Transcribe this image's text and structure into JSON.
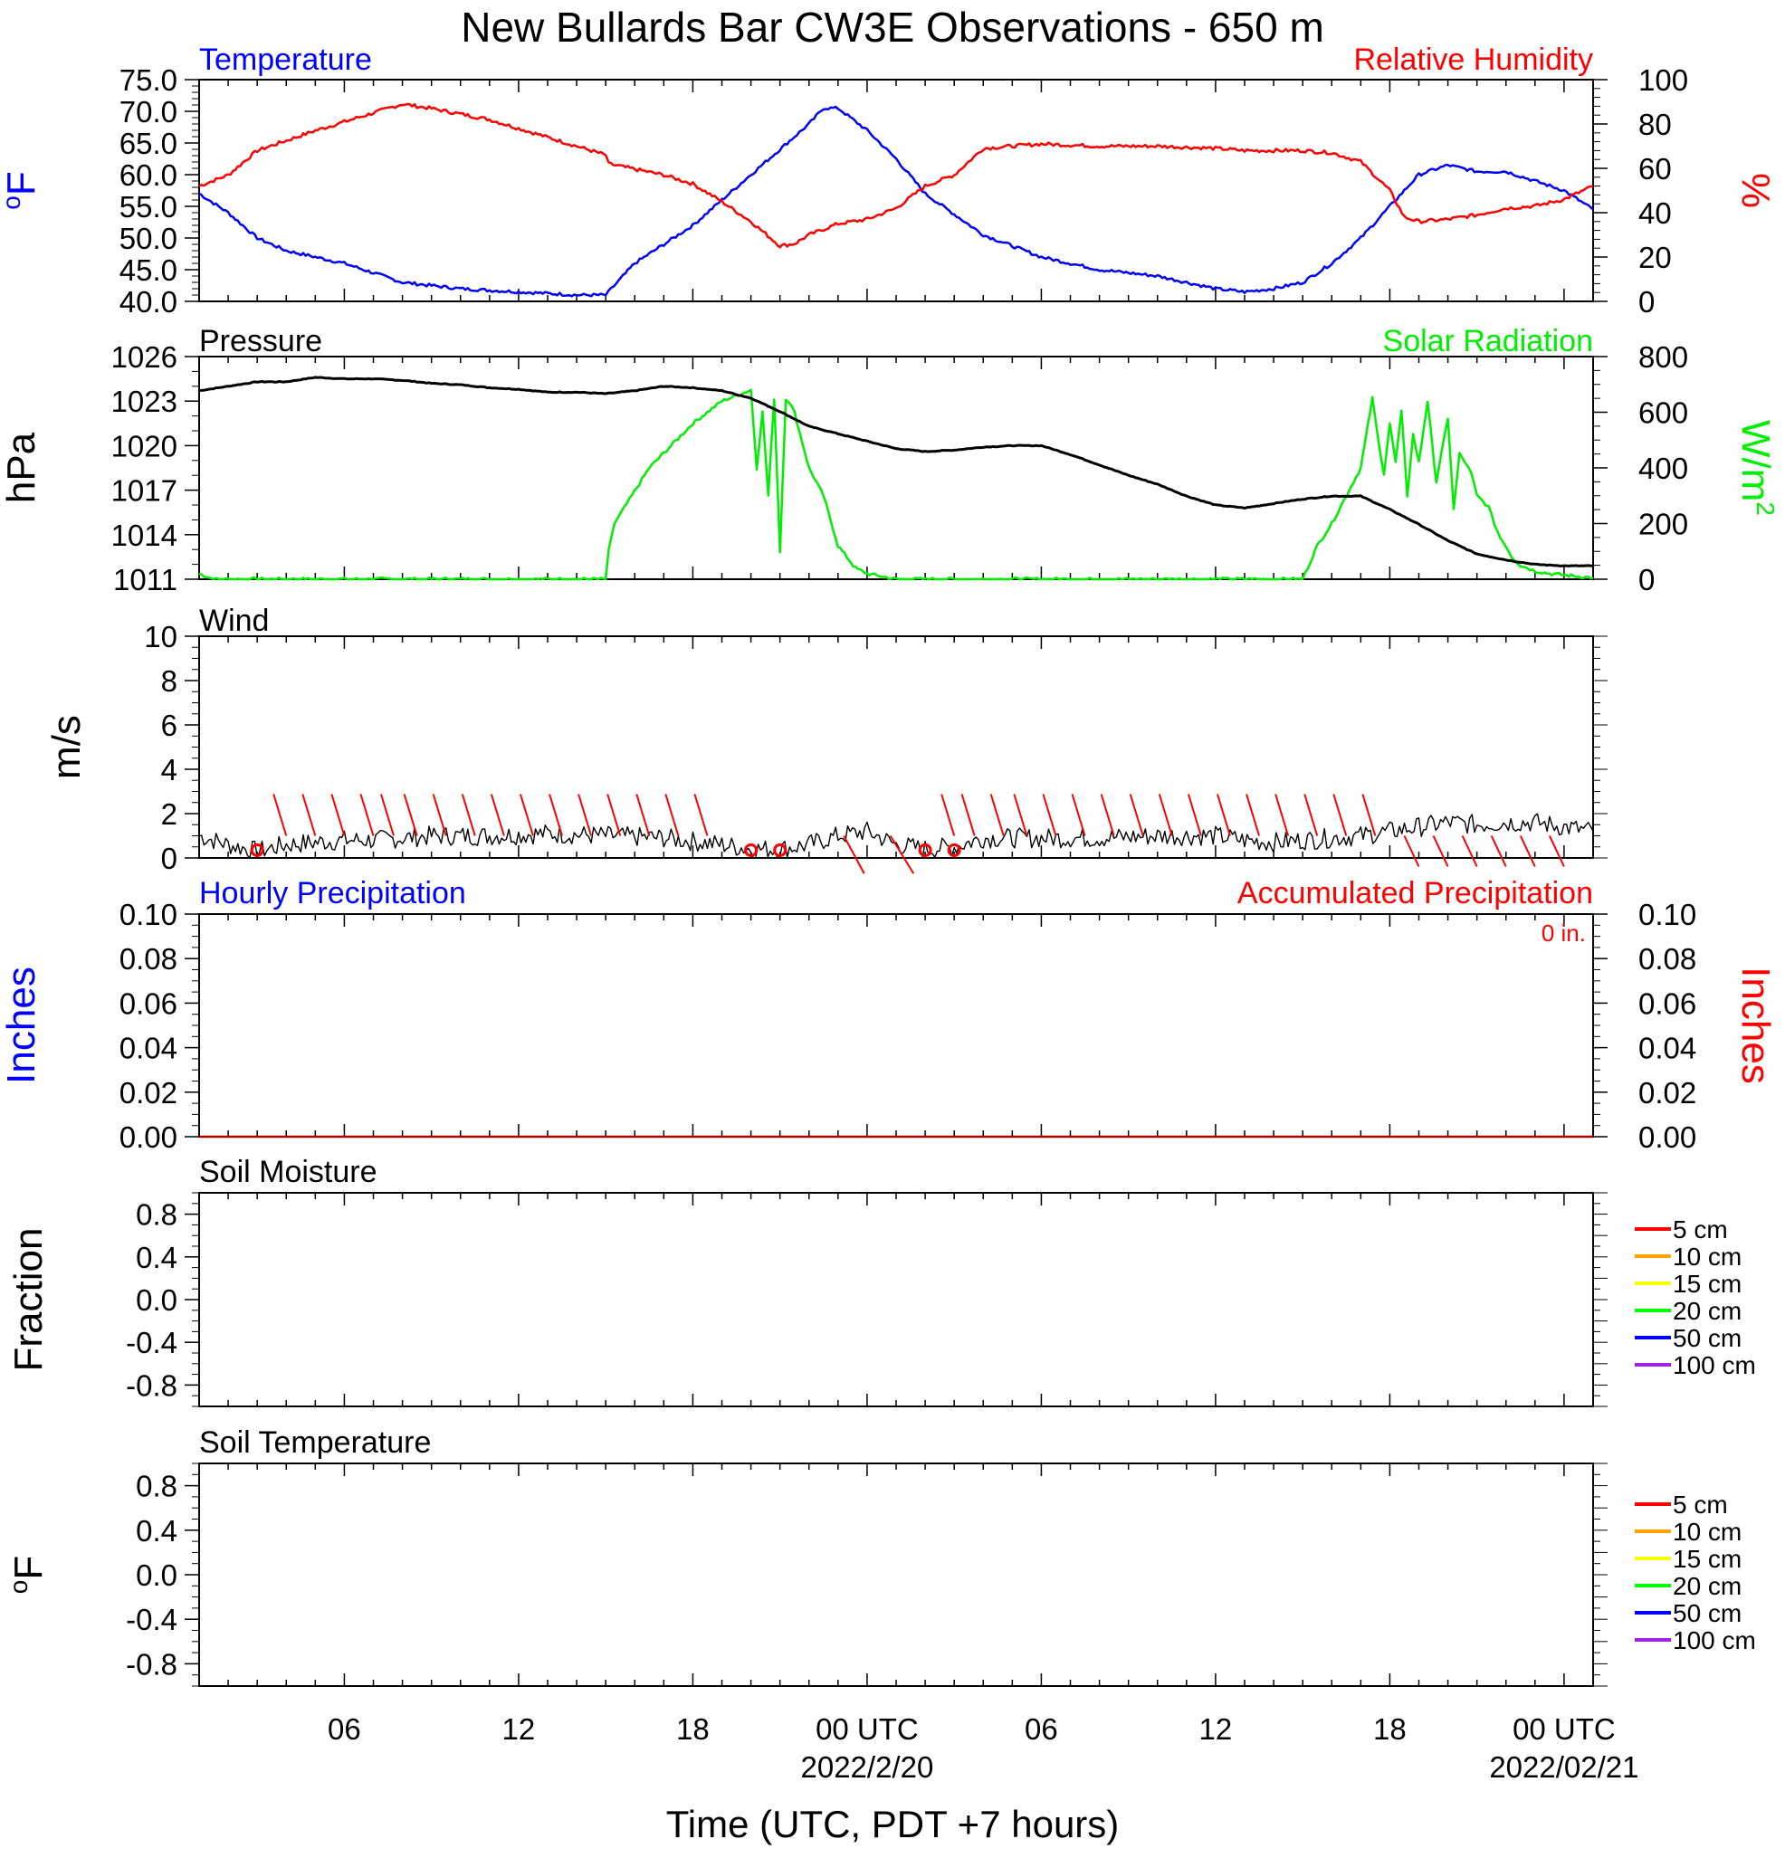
{
  "title": "New Bullards Bar CW3E Observations - 650 m",
  "xlabel": "Time (UTC, PDT +7 hours)",
  "x_axis": {
    "range_hours": [
      0,
      48
    ],
    "ticks": [
      {
        "hour": 5,
        "label": "06",
        "sub": ""
      },
      {
        "hour": 11,
        "label": "12",
        "sub": ""
      },
      {
        "hour": 17,
        "label": "18",
        "sub": ""
      },
      {
        "hour": 23,
        "label": "00 UTC",
        "sub": "2022/2/20"
      },
      {
        "hour": 29,
        "label": "06",
        "sub": ""
      },
      {
        "hour": 35,
        "label": "12",
        "sub": ""
      },
      {
        "hour": 41,
        "label": "18",
        "sub": ""
      },
      {
        "hour": 47,
        "label": "00 UTC",
        "sub": "2022/02/21"
      }
    ]
  },
  "colors": {
    "temperature": "#0000ff",
    "humidity": "#ff0000",
    "pressure": "#000000",
    "solar": "#00ee00",
    "wind": "#000000",
    "wind_barb": "#ff0000",
    "precip_hourly": "#0000ff",
    "precip_accum": "#ff0000"
  },
  "legend": {
    "depths": [
      {
        "label": "5 cm",
        "color": "#ff0000"
      },
      {
        "label": "10 cm",
        "color": "#ffa500"
      },
      {
        "label": "15 cm",
        "color": "#ffff00"
      },
      {
        "label": "20 cm",
        "color": "#00ff00"
      },
      {
        "label": "50 cm",
        "color": "#0000ff"
      },
      {
        "label": "100 cm",
        "color": "#a020f0"
      }
    ]
  },
  "panels": {
    "temp_rh": {
      "left_title": "Temperature",
      "right_title": "Relative Humidity",
      "left_ylabel": "oF",
      "right_ylabel": "%",
      "left_ylim": [
        40,
        75
      ],
      "left_ticks": [
        "40.0",
        "45.0",
        "50.0",
        "55.0",
        "60.0",
        "65.0",
        "70.0",
        "75.0"
      ],
      "right_ylim": [
        0,
        100
      ],
      "right_ticks": [
        "0",
        "20",
        "40",
        "60",
        "80",
        "100"
      ]
    },
    "pressure_solar": {
      "left_title": "Pressure",
      "right_title": "Solar Radiation",
      "left_ylabel": "hPa",
      "right_ylabel": "W/m2",
      "left_ylim": [
        1011,
        1026
      ],
      "left_ticks": [
        "1011",
        "1014",
        "1017",
        "1020",
        "1023",
        "1026"
      ],
      "right_ylim": [
        0,
        800
      ],
      "right_ticks": [
        "0",
        "200",
        "400",
        "600",
        "800"
      ]
    },
    "wind": {
      "left_title": "Wind",
      "left_ylabel": "m/s",
      "left_ylim": [
        0,
        10
      ],
      "left_ticks": [
        "0",
        "2",
        "4",
        "6",
        "8",
        "10"
      ]
    },
    "precip": {
      "left_title": "Hourly Precipitation",
      "right_title": "Accumulated Precipitation",
      "accum_text": "0 in.",
      "left_ylabel": "Inches",
      "right_ylabel": "Inches",
      "left_ylim": [
        0,
        0.1
      ],
      "left_ticks": [
        "0.00",
        "0.02",
        "0.04",
        "0.06",
        "0.08",
        "0.10"
      ],
      "right_ticks": [
        "0.00",
        "0.02",
        "0.04",
        "0.06",
        "0.08",
        "0.10"
      ]
    },
    "soil_moisture": {
      "left_title": "Soil Moisture",
      "left_ylabel": "Fraction",
      "left_ylim": [
        -1,
        1
      ],
      "left_ticks": [
        "-0.8",
        "-0.4",
        "0.0",
        "0.4",
        "0.8"
      ]
    },
    "soil_temp": {
      "left_title": "Soil Temperature",
      "left_ylabel": "oF",
      "left_ylim": [
        -1,
        1
      ],
      "left_ticks": [
        "-0.8",
        "-0.4",
        "0.0",
        "0.4",
        "0.8"
      ]
    }
  },
  "chart_data": [
    {
      "type": "line",
      "title": "Temperature",
      "ylabel": "oF",
      "ylim": [
        40,
        75
      ],
      "x_units": "hours since start of record (UTC)",
      "x": [
        0,
        1,
        2,
        3,
        5,
        6,
        7,
        9,
        11,
        13,
        14,
        14.2,
        15,
        17,
        18,
        19,
        20,
        21,
        21.5,
        22,
        23,
        24,
        25,
        27,
        29,
        31,
        33,
        35,
        36,
        37,
        38,
        39,
        40,
        41,
        42,
        43,
        44,
        45,
        46,
        47,
        48
      ],
      "y": [
        57,
        54,
        50,
        48,
        46,
        44.5,
        43,
        42,
        41.5,
        41,
        41,
        42,
        46,
        52,
        56,
        60,
        64,
        68,
        70.5,
        70.5,
        67,
        62.5,
        57,
        50.5,
        47,
        45,
        44,
        42,
        41.5,
        42,
        43,
        46,
        50,
        55,
        60,
        61.5,
        60.5,
        60.5,
        59,
        57.5,
        54.5
      ]
    },
    {
      "type": "line",
      "title": "Relative Humidity",
      "ylabel": "%",
      "ylim": [
        0,
        100
      ],
      "x": [
        0,
        1,
        2,
        4,
        6,
        7,
        8,
        10,
        12,
        14,
        14.1,
        16,
        17,
        18,
        19,
        20,
        20.5,
        21,
        22,
        23,
        24,
        25,
        26,
        27,
        29,
        31,
        33,
        35,
        36,
        37,
        38,
        39,
        40,
        41,
        41.5,
        42,
        43,
        44,
        45,
        46,
        47,
        48
      ],
      "y": [
        52,
        57,
        68,
        77,
        85,
        89,
        87,
        82,
        74,
        66,
        62,
        57,
        53,
        45,
        36,
        25,
        26,
        30,
        35,
        37,
        42,
        52,
        57,
        69,
        71,
        70,
        70,
        69,
        68,
        68,
        68,
        67,
        63,
        50,
        38,
        36,
        37,
        39,
        42,
        43,
        46,
        52
      ]
    },
    {
      "type": "line",
      "title": "Pressure",
      "ylabel": "hPa",
      "ylim": [
        1011,
        1026
      ],
      "x": [
        0,
        1,
        2,
        3,
        4,
        5,
        6,
        7,
        8,
        9,
        10,
        11,
        12,
        13,
        14,
        15,
        16,
        17,
        18,
        19,
        20,
        21,
        22,
        23,
        24,
        25,
        26,
        27,
        28,
        29,
        30,
        31,
        32,
        33,
        34,
        35,
        36,
        37,
        38,
        39,
        40,
        41,
        42,
        43,
        44,
        45,
        46,
        47,
        48
      ],
      "y": [
        1023.7,
        1024,
        1024.3,
        1024.3,
        1024.6,
        1024.5,
        1024.5,
        1024.4,
        1024.2,
        1024.1,
        1023.9,
        1023.8,
        1023.6,
        1023.6,
        1023.5,
        1023.7,
        1024,
        1023.9,
        1023.7,
        1023.2,
        1022.3,
        1021.3,
        1020.8,
        1020.3,
        1019.8,
        1019.6,
        1019.7,
        1019.9,
        1020,
        1020,
        1019.4,
        1018.7,
        1018.0,
        1017.4,
        1016.6,
        1016.0,
        1015.8,
        1016.1,
        1016.4,
        1016.6,
        1016.6,
        1015.7,
        1014.7,
        1013.6,
        1012.7,
        1012.3,
        1012.0,
        1011.9,
        1011.9
      ]
    },
    {
      "type": "line",
      "title": "Solar Radiation",
      "ylabel": "W/m2",
      "ylim": [
        0,
        800
      ],
      "x": [
        0,
        0.5,
        14,
        14.1,
        14.3,
        15.5,
        17,
        18,
        19,
        19.2,
        19.4,
        19.6,
        19.8,
        20,
        20.2,
        20.3,
        20.5,
        20.7,
        21,
        21.5,
        22,
        22.3,
        22.6,
        23,
        24,
        25,
        28,
        31,
        34,
        37,
        38,
        38.5,
        39,
        40,
        40.4,
        40.6,
        40.8,
        41,
        41.2,
        41.4,
        41.6,
        41.8,
        42,
        42.3,
        42.6,
        43,
        43.2,
        43.4,
        43.6,
        43.8,
        44,
        44.2,
        44.4,
        44.6,
        44.8,
        45,
        45.2,
        45.5,
        46,
        46.5,
        47,
        47.5,
        48
      ],
      "y": [
        20,
        0,
        0,
        100,
        200,
        400,
        560,
        640,
        680,
        400,
        600,
        300,
        650,
        100,
        650,
        640,
        600,
        520,
        400,
        300,
        120,
        80,
        40,
        20,
        0,
        0,
        0,
        0,
        0,
        0,
        0,
        120,
        200,
        400,
        650,
        500,
        380,
        560,
        420,
        600,
        300,
        520,
        420,
        640,
        350,
        580,
        250,
        450,
        420,
        380,
        300,
        280,
        260,
        200,
        150,
        120,
        80,
        50,
        30,
        20,
        15,
        10,
        5
      ]
    },
    {
      "type": "line",
      "title": "Wind",
      "ylabel": "m/s",
      "ylim": [
        0,
        10
      ],
      "x": [
        0,
        1,
        2,
        3,
        4,
        5,
        6,
        8,
        10,
        12,
        14,
        16,
        18,
        19,
        20,
        21,
        22,
        23,
        24,
        25,
        26,
        27,
        29,
        31,
        33,
        35,
        36,
        37,
        38,
        40,
        41,
        42,
        43,
        44,
        45,
        46,
        47,
        48
      ],
      "y": [
        1.0,
        0.6,
        0.3,
        0.6,
        0.7,
        0.8,
        0.8,
        1.0,
        1.0,
        1.1,
        1.0,
        0.9,
        0.6,
        0.4,
        0.4,
        0.6,
        1.0,
        1.2,
        0.6,
        0.4,
        0.5,
        0.9,
        0.9,
        0.9,
        1.0,
        1.0,
        0.8,
        0.7,
        0.8,
        1.0,
        1.2,
        1.4,
        1.6,
        1.5,
        1.6,
        1.6,
        1.4,
        1.2
      ]
    },
    {
      "type": "line",
      "title": "Hourly Precipitation",
      "ylabel": "Inches",
      "ylim": [
        0,
        0.1
      ],
      "x": [
        0,
        48
      ],
      "y": [
        0,
        0
      ]
    },
    {
      "type": "line",
      "title": "Accumulated Precipitation",
      "ylabel": "Inches",
      "ylim": [
        0,
        0.1
      ],
      "x": [
        0,
        48
      ],
      "y": [
        0,
        0
      ]
    }
  ]
}
